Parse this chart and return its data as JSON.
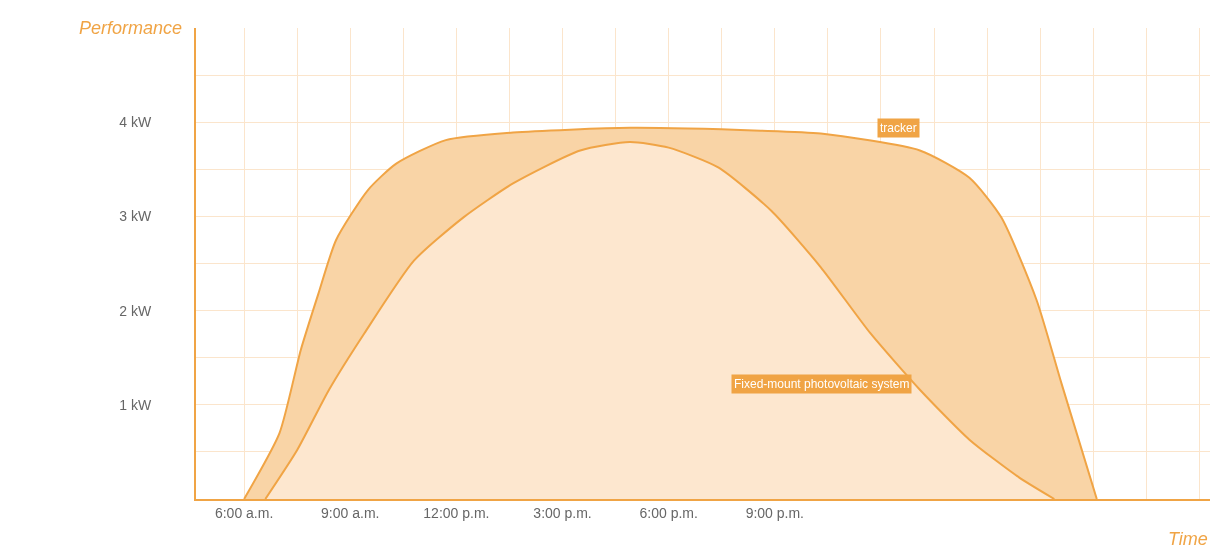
{
  "chart_data": {
    "type": "area",
    "xlabel": "Time",
    "ylabel": "Performance",
    "series": [
      {
        "name": "tracker",
        "color": "#f0a445",
        "x": [
          6.0,
          7.0,
          7.6,
          8.1,
          8.6,
          9.5,
          10.3,
          11.7,
          13.6,
          16.9,
          20.6,
          22.3,
          25.1,
          26.5,
          27.4,
          28.4,
          29.1,
          30.1
        ],
        "values": [
          0,
          0.7,
          1.58,
          2.18,
          2.75,
          3.28,
          3.56,
          3.81,
          3.89,
          3.94,
          3.91,
          3.88,
          3.7,
          3.41,
          2.99,
          2.11,
          1.23,
          0
        ]
      },
      {
        "name": "Fixed-mount photovoltaic system",
        "color": "#f0a445",
        "x": [
          6.6,
          7.5,
          8.4,
          9.4,
          10.8,
          12.2,
          13.6,
          15.5,
          16.9,
          18.0,
          19.4,
          20.9,
          22.3,
          23.7,
          25.1,
          26.5,
          27.9,
          28.9
        ],
        "values": [
          0,
          0.52,
          1.16,
          1.76,
          2.53,
          2.99,
          3.35,
          3.7,
          3.79,
          3.73,
          3.52,
          3.06,
          2.46,
          1.76,
          1.16,
          0.63,
          0.23,
          0
        ]
      }
    ],
    "xlim": [
      4.64,
      33.3
    ],
    "xticks": [
      {
        "value": 6,
        "label": "6:00 a.m."
      },
      {
        "value": 7.5,
        "label": null
      },
      {
        "value": 9,
        "label": "9:00 a.m."
      },
      {
        "value": 10.5,
        "label": null
      },
      {
        "value": 12,
        "label": "12:00 p.m."
      },
      {
        "value": 13.5,
        "label": null
      },
      {
        "value": 15,
        "label": "3:00 p.m."
      },
      {
        "value": 16.5,
        "label": null
      },
      {
        "value": 18,
        "label": "6:00 p.m."
      },
      {
        "value": 19.5,
        "label": null
      },
      {
        "value": 21,
        "label": "9:00 p.m."
      },
      {
        "value": 22.5,
        "label": null
      },
      {
        "value": 24,
        "label": null
      },
      {
        "value": 25.5,
        "label": null
      },
      {
        "value": 27,
        "label": null
      },
      {
        "value": 28.5,
        "label": null
      },
      {
        "value": 30,
        "label": null
      },
      {
        "value": 31.5,
        "label": null
      },
      {
        "value": 33,
        "label": null
      }
    ],
    "ylim": [
      0,
      5
    ],
    "yticks": [
      {
        "value": 0,
        "label": null
      },
      {
        "value": 0.5,
        "label": null
      },
      {
        "value": 1,
        "label": "1 kW"
      },
      {
        "value": 1.5,
        "label": null
      },
      {
        "value": 2,
        "label": "2 kW"
      },
      {
        "value": 2.5,
        "label": null
      },
      {
        "value": 3,
        "label": "3 kW"
      },
      {
        "value": 3.5,
        "label": null
      },
      {
        "value": 4,
        "label": "4 kW"
      },
      {
        "value": 4.5,
        "label": null
      }
    ],
    "grid": true,
    "legend": false,
    "marker": "none",
    "line_style": "solid"
  }
}
